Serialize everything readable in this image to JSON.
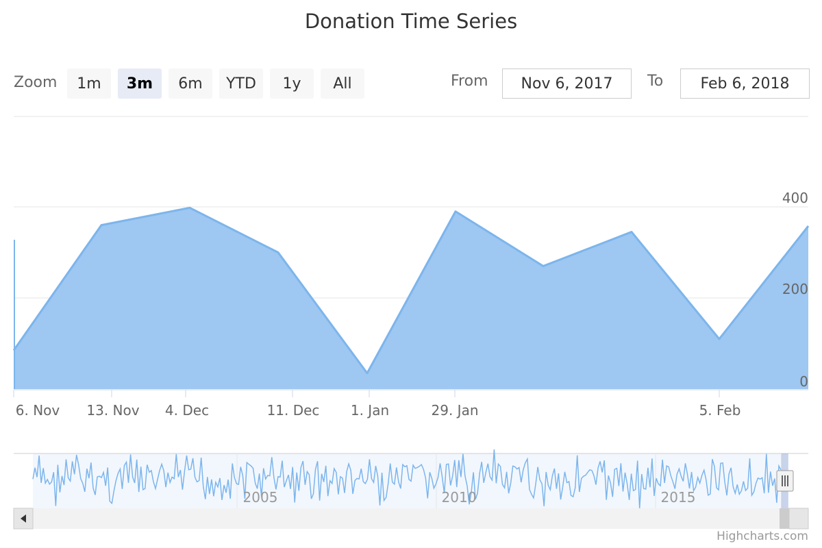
{
  "rangeSelector": {
    "zoom_label": "Zoom",
    "buttons": [
      "1m",
      "3m",
      "6m",
      "YTD",
      "1y",
      "All"
    ],
    "active": "3m",
    "from_label": "From",
    "from_value": "Nov 6, 2017",
    "to_label": "To",
    "to_value": "Feb 6, 2018"
  },
  "credits": "Highcharts.com",
  "colors": {
    "series": "#7cb5ec",
    "fill": "#9ec7f1"
  },
  "chart_data": {
    "type": "area",
    "title": "Donation Time Series",
    "categories": [
      "6. Nov",
      "13. Nov",
      "4. Dec",
      "11. Dec",
      "1. Jan",
      "29. Jan",
      "",
      "",
      "5. Feb",
      ""
    ],
    "series": [
      {
        "values": [
          85,
          360,
          398,
          300,
          35,
          390,
          270,
          345,
          110,
          358
        ]
      }
    ],
    "ylim": [
      0,
      400
    ],
    "yticks": [
      0,
      200,
      400
    ],
    "grid": true,
    "legend": "none",
    "navigator": {
      "labels": [
        "2005",
        "2010",
        "2015"
      ]
    }
  }
}
